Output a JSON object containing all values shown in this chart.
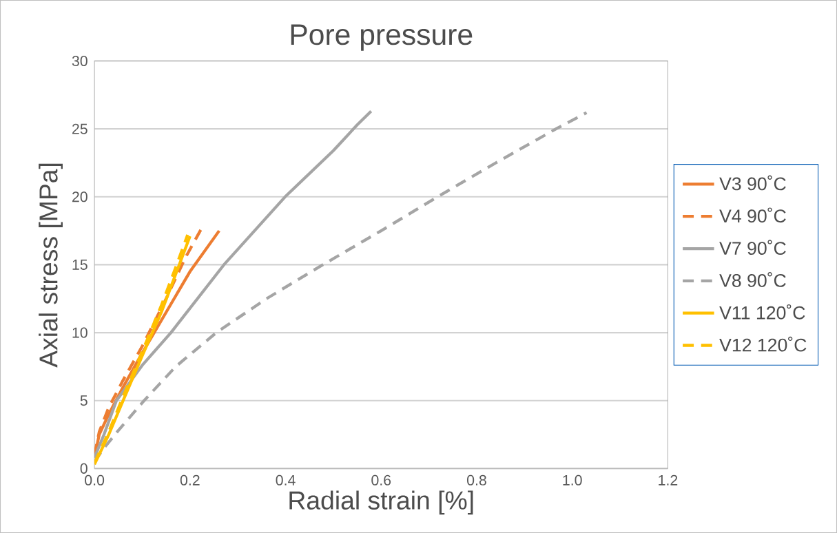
{
  "chart_data": {
    "type": "line",
    "title": "Pore pressure",
    "xlabel": "Radial strain [%]",
    "ylabel": "Axial stress [MPa]",
    "xlim": [
      0,
      1.2
    ],
    "ylim": [
      0,
      30
    ],
    "xticks": [
      {
        "value": 0,
        "label": "0.0"
      },
      0.2,
      0.4,
      0.6,
      0.8,
      {
        "value": 1,
        "label": "1.0"
      },
      1.2
    ],
    "yticks": [
      0,
      5,
      10,
      15,
      20,
      25,
      30
    ],
    "grid": "y",
    "legend": "right",
    "marker": "none",
    "series": [
      {
        "name": "V3 90˚C",
        "color": "#ed7d31",
        "line_style": "solid",
        "x": [
          0,
          0.01,
          0.03,
          0.06,
          0.1,
          0.15,
          0.2,
          0.261
        ],
        "values": [
          0.8,
          2.5,
          4,
          6,
          8.5,
          11.5,
          14.5,
          17.5
        ]
      },
      {
        "name": "V4 90˚C",
        "color": "#ed7d31",
        "line_style": "dashed",
        "x": [
          0,
          0.01,
          0.03,
          0.06,
          0.1,
          0.15,
          0.19,
          0.223
        ],
        "values": [
          1,
          2.7,
          4.5,
          6.5,
          9,
          12.5,
          15.5,
          17.6
        ]
      },
      {
        "name": "V7 90˚C",
        "color": "#a5a5a5",
        "line_style": "solid",
        "x": [
          0,
          0.02,
          0.046,
          0.1,
          0.16,
          0.271,
          0.399,
          0.5,
          0.55,
          0.579
        ],
        "values": [
          0.8,
          2.5,
          5,
          7.6,
          10,
          15,
          20,
          23.4,
          25.3,
          26.3
        ]
      },
      {
        "name": "V8 90˚C",
        "color": "#a5a5a5",
        "line_style": "dashed",
        "x": [
          0,
          0.02,
          0.05,
          0.104,
          0.17,
          0.255,
          0.36,
          0.478,
          0.6,
          0.718,
          0.84,
          0.966,
          1.03
        ],
        "values": [
          0.5,
          1.5,
          2.8,
          5,
          7.5,
          10,
          12.5,
          15,
          17.5,
          20,
          22.5,
          25,
          26.2
        ]
      },
      {
        "name": "V11 120˚C",
        "color": "#ffc000",
        "line_style": "solid",
        "x": [
          0,
          0.03,
          0.06,
          0.1,
          0.14,
          0.17,
          0.2
        ],
        "values": [
          0.3,
          2.5,
          5,
          8.3,
          11.5,
          14.3,
          17.1
        ]
      },
      {
        "name": "V12 120˚C",
        "color": "#ffc000",
        "line_style": "dashed",
        "x": [
          0,
          0.03,
          0.06,
          0.1,
          0.14,
          0.17,
          0.195
        ],
        "values": [
          0.4,
          2.7,
          5.3,
          8.6,
          12,
          14.8,
          17.2
        ]
      }
    ]
  }
}
